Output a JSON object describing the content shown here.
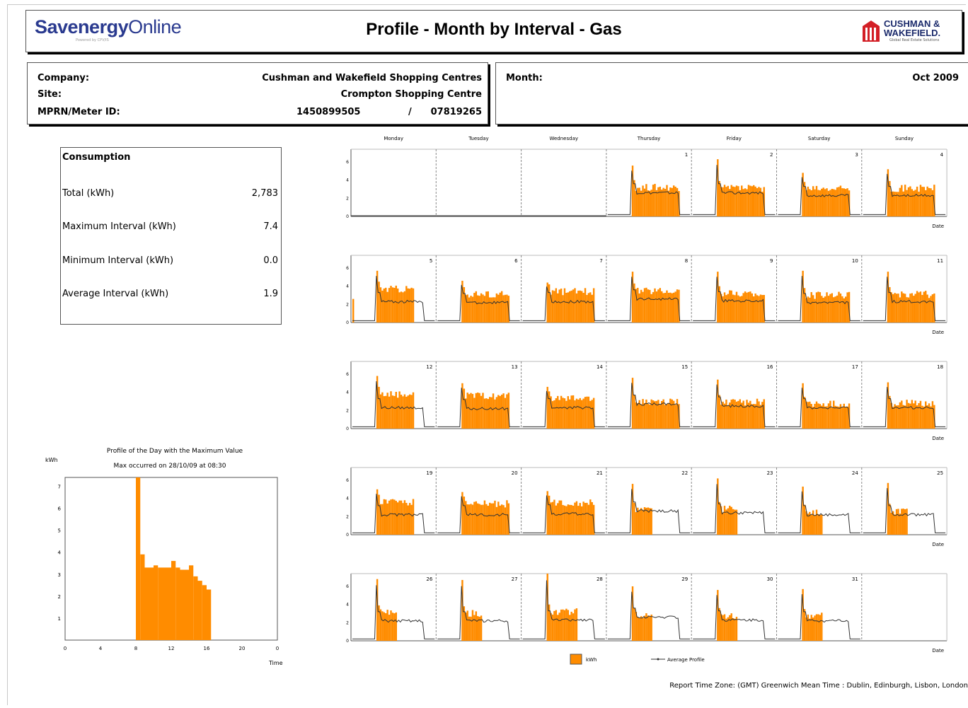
{
  "header": {
    "logo_text_a": "Savenergy",
    "logo_text_b": "Online",
    "logo_tagline": "Powered by CPV/IS",
    "title": "Profile - Month by Interval - Gas",
    "brand_line1": "CUSHMAN &",
    "brand_line2": "WAKEFIELD.",
    "brand_tagline": "Global Real Estate Solutions"
  },
  "info": {
    "company_label": "Company:",
    "company_value": "Cushman and Wakefield Shopping Centres",
    "site_label": "Site:",
    "site_value": "Crompton Shopping Centre",
    "mprn_label": "MPRN/Meter ID:",
    "mprn_value": "1450899505",
    "meter_sep": "/",
    "meter_value": "07819265",
    "month_label": "Month:",
    "month_value": "Oct 2009"
  },
  "consumption": {
    "title": "Consumption",
    "rows": [
      {
        "label": "Total (kWh)",
        "value": "2,783"
      },
      {
        "label": "Maximum Interval (kWh)",
        "value": "7.4"
      },
      {
        "label": "Minimum Interval (kWh)",
        "value": "0.0"
      },
      {
        "label": "Average Interval (kWh)",
        "value": "1.9"
      }
    ]
  },
  "footer": {
    "timezone": "Report Time Zone: (GMT) Greenwich Mean Time : Dublin, Edinburgh, Lisbon, London"
  },
  "colors": {
    "bar": "#ff8c00",
    "avg_line": "#333333",
    "grid": "#888888"
  },
  "chart_data": [
    {
      "type": "bar",
      "title": "Profile of the Day with the Maximum Value",
      "subtitle": "Max occurred on 28/10/09 at 08:30",
      "ylabel": "kWh",
      "xlabel": "Time",
      "xlim": [
        0,
        24
      ],
      "ylim": [
        0,
        7.4
      ],
      "x_ticks": [
        "0",
        "4",
        "8",
        "12",
        "16",
        "20",
        "0"
      ],
      "y_ticks": [
        "1",
        "2",
        "3",
        "4",
        "5",
        "6",
        "7"
      ],
      "bars": [
        {
          "start": 8.0,
          "end": 8.5,
          "value": 7.4
        },
        {
          "start": 8.5,
          "end": 9.0,
          "value": 3.9
        },
        {
          "start": 9.0,
          "end": 10.0,
          "value": 3.3
        },
        {
          "start": 10.0,
          "end": 10.5,
          "value": 3.4
        },
        {
          "start": 10.5,
          "end": 12.0,
          "value": 3.3
        },
        {
          "start": 12.0,
          "end": 12.5,
          "value": 3.6
        },
        {
          "start": 12.5,
          "end": 13.0,
          "value": 3.3
        },
        {
          "start": 13.0,
          "end": 14.0,
          "value": 3.2
        },
        {
          "start": 14.0,
          "end": 14.5,
          "value": 3.4
        },
        {
          "start": 14.5,
          "end": 15.0,
          "value": 2.9
        },
        {
          "start": 15.0,
          "end": 15.5,
          "value": 2.7
        },
        {
          "start": 15.5,
          "end": 16.0,
          "value": 2.5
        },
        {
          "start": 16.0,
          "end": 16.5,
          "value": 2.3
        }
      ]
    },
    {
      "type": "bar",
      "title": "",
      "xlabel": "Date",
      "ylim": [
        0,
        7.4
      ],
      "y_ticks": [
        "0",
        "2",
        "4",
        "6"
      ],
      "weekdays": [
        "Monday",
        "Tuesday",
        "Wednesday",
        "Thursday",
        "Friday",
        "Saturday",
        "Sunday"
      ],
      "legend": {
        "bar_label": "kWh",
        "line_label": "Average Profile",
        "position": "bottom"
      },
      "weeks": [
        [
          "",
          "",
          "",
          "1",
          "2",
          "3",
          "4"
        ],
        [
          "5",
          "6",
          "7",
          "8",
          "9",
          "10",
          "11"
        ],
        [
          "12",
          "13",
          "14",
          "15",
          "16",
          "17",
          "18"
        ],
        [
          "19",
          "20",
          "21",
          "22",
          "23",
          "24",
          "25"
        ],
        [
          "26",
          "27",
          "28",
          "29",
          "30",
          "31",
          ""
        ]
      ],
      "days": [
        {
          "day": 1,
          "peak": 5.6,
          "level": 3.2,
          "avg_level": 2.6,
          "end_hour": 21
        },
        {
          "day": 2,
          "peak": 6.3,
          "level": 3.1,
          "avg_level": 2.6,
          "end_hour": 21
        },
        {
          "day": 3,
          "peak": 4.8,
          "level": 3.0,
          "avg_level": 2.3,
          "end_hour": 21
        },
        {
          "day": 4,
          "peak": 5.2,
          "level": 3.1,
          "avg_level": 2.3,
          "end_hour": 21
        },
        {
          "day": 5,
          "peak": 5.7,
          "level": 3.7,
          "avg_level": 2.3,
          "end_hour": 18
        },
        {
          "day": 6,
          "peak": 4.6,
          "level": 3.1,
          "avg_level": 2.2,
          "end_hour": 21
        },
        {
          "day": 7,
          "peak": 4.4,
          "level": 3.4,
          "avg_level": 2.3,
          "end_hour": 21
        },
        {
          "day": 8,
          "peak": 5.6,
          "level": 3.5,
          "avg_level": 2.6,
          "end_hour": 21
        },
        {
          "day": 9,
          "peak": 5.6,
          "level": 3.2,
          "avg_level": 2.4,
          "end_hour": 21
        },
        {
          "day": 10,
          "peak": 5.7,
          "level": 3.0,
          "avg_level": 2.2,
          "end_hour": 21
        },
        {
          "day": 11,
          "peak": 5.6,
          "level": 3.1,
          "avg_level": 2.3,
          "end_hour": 21
        },
        {
          "day": 12,
          "peak": 5.8,
          "level": 3.8,
          "avg_level": 2.3,
          "end_hour": 18
        },
        {
          "day": 13,
          "peak": 5.0,
          "level": 3.6,
          "avg_level": 2.2,
          "end_hour": 21
        },
        {
          "day": 14,
          "peak": 4.6,
          "level": 3.3,
          "avg_level": 2.3,
          "end_hour": 21
        },
        {
          "day": 15,
          "peak": 5.6,
          "level": 2.9,
          "avg_level": 2.7,
          "end_hour": 21
        },
        {
          "day": 16,
          "peak": 5.4,
          "level": 2.9,
          "avg_level": 2.5,
          "end_hour": 21
        },
        {
          "day": 17,
          "peak": 5.0,
          "level": 2.7,
          "avg_level": 2.3,
          "end_hour": 21
        },
        {
          "day": 18,
          "peak": 5.1,
          "level": 2.8,
          "avg_level": 2.3,
          "end_hour": 21
        },
        {
          "day": 19,
          "peak": 5.0,
          "level": 3.6,
          "avg_level": 2.2,
          "end_hour": 18
        },
        {
          "day": 20,
          "peak": 4.7,
          "level": 3.4,
          "avg_level": 2.2,
          "end_hour": 21
        },
        {
          "day": 21,
          "peak": 4.8,
          "level": 3.5,
          "avg_level": 2.3,
          "end_hour": 21
        },
        {
          "day": 22,
          "peak": 5.6,
          "level": 2.7,
          "avg_level": 2.6,
          "end_hour": 13
        },
        {
          "day": 23,
          "peak": 6.2,
          "level": 2.8,
          "avg_level": 2.4,
          "end_hour": 13
        },
        {
          "day": 24,
          "peak": 5.3,
          "level": 2.5,
          "avg_level": 2.2,
          "end_hour": 13
        },
        {
          "day": 25,
          "peak": 5.7,
          "level": 2.6,
          "avg_level": 2.2,
          "end_hour": 13
        },
        {
          "day": 26,
          "peak": 6.8,
          "level": 3.1,
          "avg_level": 2.2,
          "end_hour": 13
        },
        {
          "day": 27,
          "peak": 6.7,
          "level": 3.0,
          "avg_level": 2.2,
          "end_hour": 13
        },
        {
          "day": 28,
          "peak": 7.4,
          "level": 3.2,
          "avg_level": 2.3,
          "end_hour": 16
        },
        {
          "day": 29,
          "peak": 6.0,
          "level": 2.8,
          "avg_level": 2.6,
          "end_hour": 13
        },
        {
          "day": 30,
          "peak": 5.6,
          "level": 2.8,
          "avg_level": 2.3,
          "end_hour": 13
        },
        {
          "day": 31,
          "peak": 5.7,
          "level": 2.7,
          "avg_level": 2.2,
          "end_hour": 13
        }
      ]
    }
  ]
}
